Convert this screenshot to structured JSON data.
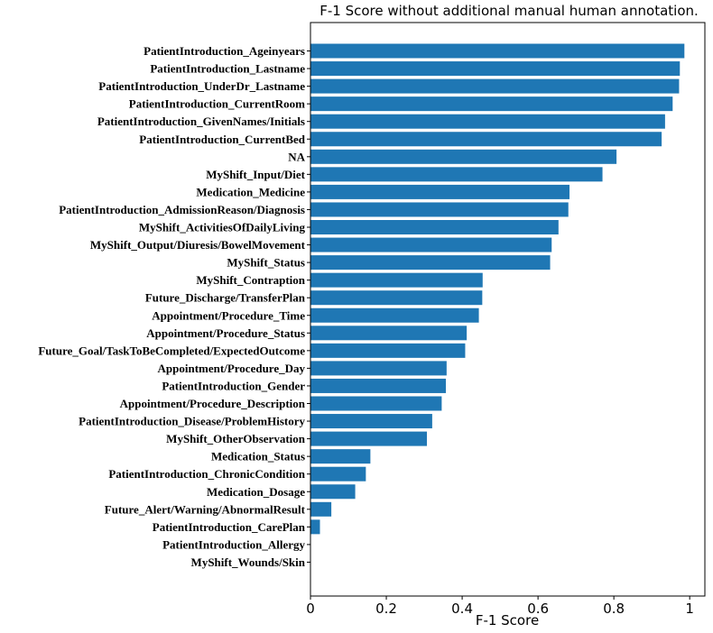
{
  "chart_data": {
    "type": "bar",
    "orientation": "horizontal",
    "title": "F-1 Score without additional manual human annotation.",
    "xlabel": "F-1 Score",
    "ylabel": "",
    "xlim": [
      0,
      1.04
    ],
    "xticks": [
      "0",
      "0.2",
      "0.4",
      "0.6",
      "0.8",
      "1"
    ],
    "xtick_values": [
      0,
      0.2,
      0.4,
      0.6,
      0.8,
      1.0
    ],
    "bar_color": "#1f77b4",
    "grid": false,
    "categories": [
      "PatientIntroduction_Ageinyears",
      "PatientIntroduction_Lastname",
      "PatientIntroduction_UnderDr_Lastname",
      "PatientIntroduction_CurrentRoom",
      "PatientIntroduction_GivenNames/Initials",
      "PatientIntroduction_CurrentBed",
      "NA",
      "MyShift_Input/Diet",
      "Medication_Medicine",
      "PatientIntroduction_AdmissionReason/Diagnosis",
      "MyShift_ActivitiesOfDailyLiving",
      "MyShift_Output/Diuresis/BowelMovement",
      "MyShift_Status",
      "MyShift_Contraption",
      "Future_Discharge/TransferPlan",
      "Appointment/Procedure_Time",
      "Appointment/Procedure_Status",
      "Future_Goal/TaskToBeCompleted/ExpectedOutcome",
      "Appointment/Procedure_Day",
      "PatientIntroduction_Gender",
      "Appointment/Procedure_Description",
      "PatientIntroduction_Disease/ProblemHistory",
      "MyShift_OtherObservation",
      "Medication_Status",
      "PatientIntroduction_ChronicCondition",
      "Medication_Dosage",
      "Future_Alert/Warning/AbnormalResult",
      "PatientIntroduction_CarePlan",
      "PatientIntroduction_Allergy",
      "MyShift_Wounds/Skin"
    ],
    "values": [
      0.986,
      0.974,
      0.972,
      0.955,
      0.935,
      0.926,
      0.807,
      0.77,
      0.683,
      0.68,
      0.654,
      0.636,
      0.632,
      0.454,
      0.453,
      0.444,
      0.412,
      0.408,
      0.359,
      0.357,
      0.346,
      0.321,
      0.307,
      0.158,
      0.146,
      0.118,
      0.055,
      0.025,
      0.0,
      0.0
    ]
  }
}
